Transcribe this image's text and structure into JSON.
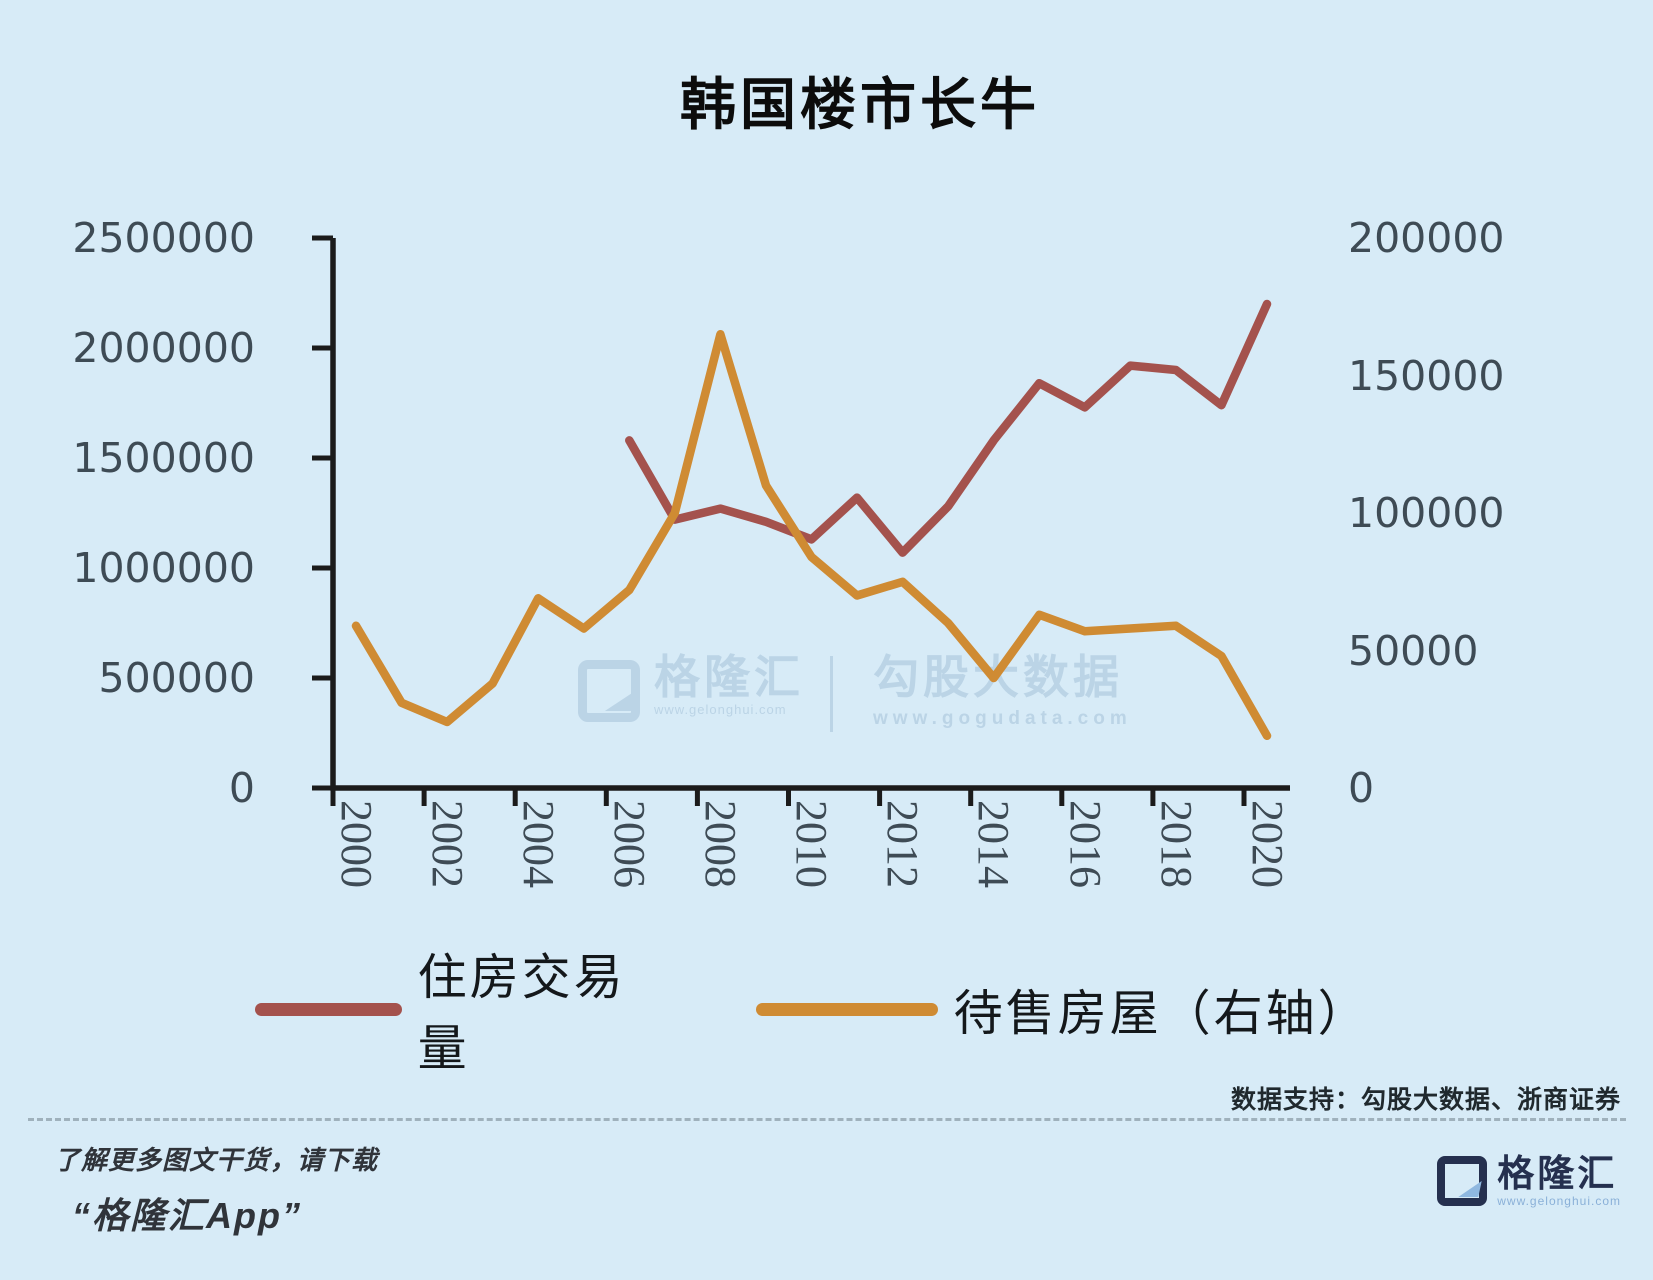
{
  "title": "韩国楼市长牛",
  "chart_data": {
    "type": "line",
    "x": [
      2000,
      2001,
      2002,
      2003,
      2004,
      2005,
      2006,
      2007,
      2008,
      2009,
      2010,
      2011,
      2012,
      2013,
      2014,
      2015,
      2016,
      2017,
      2018,
      2019,
      2020
    ],
    "x_tick_labels": [
      "2000",
      "2002",
      "2004",
      "2006",
      "2008",
      "2010",
      "2012",
      "2014",
      "2016",
      "2018",
      "2020"
    ],
    "left_axis": {
      "min": 0,
      "max": 2500000,
      "tick_labels": [
        "0",
        "500000",
        "1000000",
        "1500000",
        "2000000",
        "2500000"
      ]
    },
    "right_axis": {
      "min": 0,
      "max": 200000,
      "tick_labels": [
        "0",
        "50000",
        "100000",
        "150000",
        "200000"
      ]
    },
    "grid": false,
    "legend_position": "bottom",
    "series": [
      {
        "name": "住房交易量",
        "axis": "left",
        "color": "#a4524d",
        "values": [
          null,
          null,
          null,
          null,
          null,
          null,
          1580000,
          1220000,
          1270000,
          1210000,
          1130000,
          1320000,
          1070000,
          1280000,
          1580000,
          1840000,
          1730000,
          1920000,
          1900000,
          1740000,
          2200000
        ]
      },
      {
        "name": "待售房屋（右轴）",
        "axis": "right",
        "color": "#cf8b33",
        "values": [
          59000,
          31000,
          24000,
          38000,
          69000,
          58000,
          72000,
          100000,
          165000,
          110000,
          84000,
          70000,
          75000,
          60000,
          40000,
          63000,
          57000,
          58000,
          59000,
          48000,
          19000
        ]
      }
    ]
  },
  "legend": {
    "items": [
      {
        "label": "住房交易量",
        "color": "#a4524d"
      },
      {
        "label": "待售房屋（右轴）",
        "color": "#cf8b33"
      }
    ]
  },
  "watermark": {
    "brand_name": "格隆汇",
    "brand_url": "www.gelonghui.com",
    "partner_name": "勾股大数据",
    "partner_url": "www.gogudata.com"
  },
  "footer": {
    "data_support": "数据支持：勾股大数据、浙商证券",
    "promo_line1": "了解更多图文干货，请下载",
    "promo_line2": "“格隆汇App”"
  },
  "branding": {
    "name": "格隆汇",
    "url": "www.gelonghui.com"
  },
  "colors": {
    "background": "#d7ebf7",
    "axis": "#1b1b1b",
    "tick_text": "#3e4b55",
    "watermark": "#aac6dc",
    "series_red": "#a4524d",
    "series_orange": "#cf8b33"
  }
}
